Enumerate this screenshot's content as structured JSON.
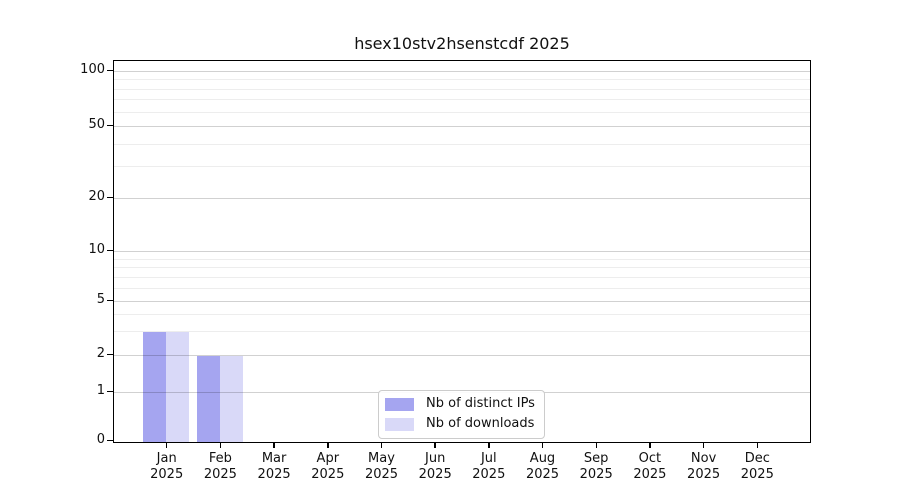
{
  "chart_data": {
    "type": "bar",
    "title": "hsex10stv2hsenstcdf 2025",
    "categories": [
      "Jan",
      "Feb",
      "Mar",
      "Apr",
      "May",
      "Jun",
      "Jul",
      "Aug",
      "Sep",
      "Oct",
      "Nov",
      "Dec"
    ],
    "year_label": "2025",
    "series": [
      {
        "name": "Nb of distinct IPs",
        "color": "#a5a5f0",
        "values": [
          3,
          2,
          0,
          0,
          0,
          0,
          0,
          0,
          0,
          0,
          0,
          0
        ]
      },
      {
        "name": "Nb of downloads",
        "color": "#d9d9f8",
        "values": [
          3,
          2,
          0,
          0,
          0,
          0,
          0,
          0,
          0,
          0,
          0,
          0
        ]
      }
    ],
    "xlabel": "",
    "ylabel": "",
    "ylim": [
      0,
      100
    ],
    "yscale": "log-like with linear 0-1 segment",
    "y_major_ticks": [
      0,
      1,
      2,
      5,
      10,
      20,
      50,
      100
    ],
    "y_minor_ticks": [
      3,
      4,
      6,
      7,
      8,
      9,
      30,
      40,
      60,
      70,
      80,
      90
    ],
    "grid": "horizontal major and minor gridlines",
    "legend_position": "lower center inside plot"
  }
}
